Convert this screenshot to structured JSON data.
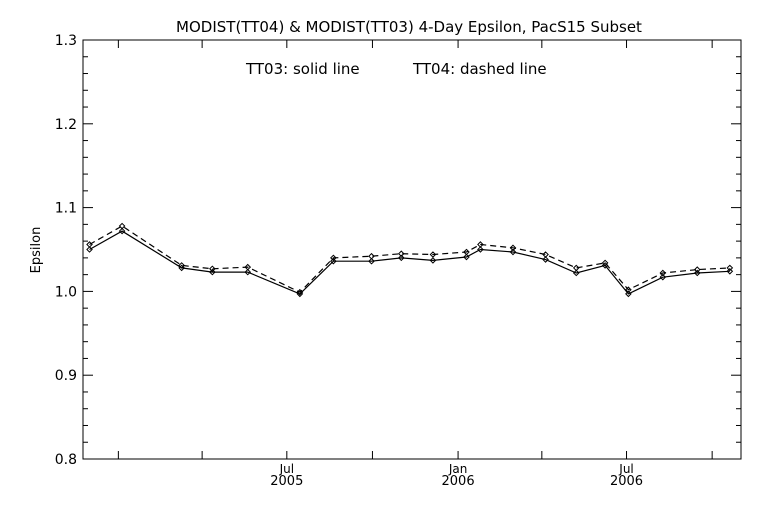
{
  "chart_data": {
    "type": "line",
    "title": "MODIST(TT04) & MODIST(TT03) 4-Day Epsilon, PacS15 Subset",
    "annotation_left": "TT03: solid line",
    "annotation_right": "TT04: dashed line",
    "ylabel": "Epsilon",
    "xlabel": "",
    "ylim": [
      0.8,
      1.3
    ],
    "y_ticks": [
      "0.8",
      "0.9",
      "1.0",
      "1.1",
      "1.2",
      "1.3"
    ],
    "x_tick_labels": [
      {
        "month": "Jul",
        "year": "2005"
      },
      {
        "month": "Jan",
        "year": "2006"
      },
      {
        "month": "Jul",
        "year": "2006"
      }
    ],
    "grid": false,
    "legend": "annotation inside plot, top-center",
    "series": [
      {
        "name": "TT03",
        "style": "solid",
        "color": "#000000",
        "points": [
          [
            "2004-12-01",
            1.05
          ],
          [
            "2005-01-05",
            1.072
          ],
          [
            "2005-03-10",
            1.028
          ],
          [
            "2005-04-12",
            1.023
          ],
          [
            "2005-05-20",
            1.023
          ],
          [
            "2005-07-15",
            0.997
          ],
          [
            "2005-08-20",
            1.036
          ],
          [
            "2005-09-30",
            1.036
          ],
          [
            "2005-11-01",
            1.04
          ],
          [
            "2005-12-05",
            1.037
          ],
          [
            "2006-01-10",
            1.041
          ],
          [
            "2006-01-25",
            1.05
          ],
          [
            "2006-03-01",
            1.047
          ],
          [
            "2006-04-05",
            1.038
          ],
          [
            "2006-05-08",
            1.022
          ],
          [
            "2006-06-08",
            1.031
          ],
          [
            "2006-07-03",
            0.997
          ],
          [
            "2006-08-09",
            1.017
          ],
          [
            "2006-09-15",
            1.022
          ],
          [
            "2006-10-20",
            1.024
          ]
        ]
      },
      {
        "name": "TT04",
        "style": "dashed",
        "color": "#000000",
        "points": [
          [
            "2004-12-01",
            1.056
          ],
          [
            "2005-01-05",
            1.078
          ],
          [
            "2005-03-10",
            1.031
          ],
          [
            "2005-04-12",
            1.027
          ],
          [
            "2005-05-20",
            1.029
          ],
          [
            "2005-07-15",
            0.999
          ],
          [
            "2005-08-20",
            1.04
          ],
          [
            "2005-09-30",
            1.042
          ],
          [
            "2005-11-01",
            1.045
          ],
          [
            "2005-12-05",
            1.044
          ],
          [
            "2006-01-10",
            1.047
          ],
          [
            "2006-01-25",
            1.056
          ],
          [
            "2006-03-01",
            1.052
          ],
          [
            "2006-04-05",
            1.044
          ],
          [
            "2006-05-08",
            1.028
          ],
          [
            "2006-06-08",
            1.034
          ],
          [
            "2006-07-03",
            1.002
          ],
          [
            "2006-08-09",
            1.022
          ],
          [
            "2006-09-15",
            1.026
          ],
          [
            "2006-10-20",
            1.028
          ]
        ]
      }
    ]
  }
}
